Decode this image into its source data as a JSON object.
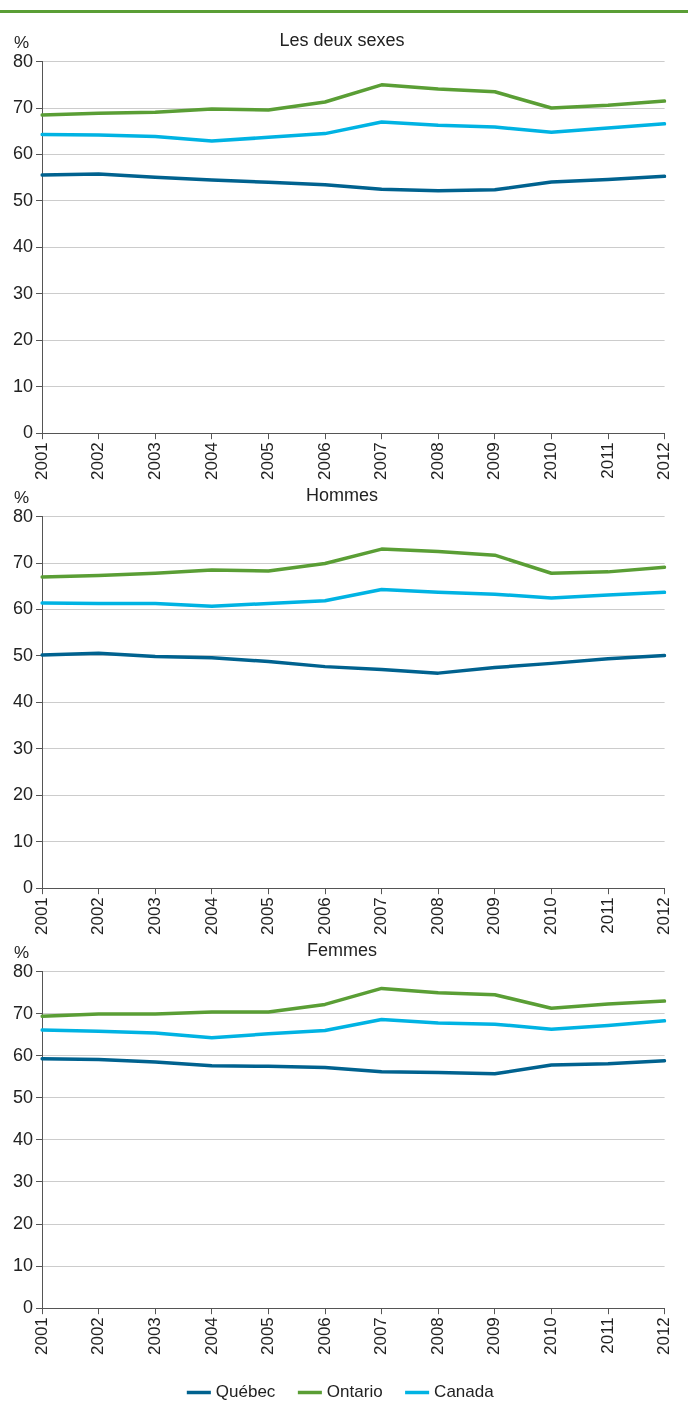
{
  "chart_data": [
    {
      "type": "line",
      "title": "Les deux sexes",
      "ylabel": "%",
      "categories": [
        "2001",
        "2002",
        "2003",
        "2004",
        "2005",
        "2006",
        "2007",
        "2008",
        "2009",
        "2010",
        "2011",
        "2012"
      ],
      "ylim": [
        0,
        80
      ],
      "yticks": [
        0,
        10,
        20,
        30,
        40,
        50,
        60,
        70,
        80
      ],
      "grid": "y",
      "marker": "none",
      "line_style": "solid",
      "series": [
        {
          "color": "#00628f",
          "values": [
            55.6,
            55.8,
            55.1,
            54.5,
            54.0,
            53.5,
            52.5,
            52.2,
            52.4,
            54.1,
            54.6,
            55.3
          ]
        },
        {
          "color": "#5a9e35",
          "values": [
            68.5,
            68.9,
            69.1,
            69.8,
            69.6,
            71.3,
            75.0,
            74.1,
            73.5,
            70.0,
            70.6,
            71.5
          ]
        },
        {
          "color": "#00b3e3",
          "values": [
            64.3,
            64.2,
            63.9,
            62.9,
            63.7,
            64.5,
            67.0,
            66.3,
            65.9,
            64.8,
            65.7,
            66.6
          ]
        }
      ]
    },
    {
      "type": "line",
      "title": "Hommes",
      "ylabel": "%",
      "categories": [
        "2001",
        "2002",
        "2003",
        "2004",
        "2005",
        "2006",
        "2007",
        "2008",
        "2009",
        "2010",
        "2011",
        "2012"
      ],
      "ylim": [
        0,
        80
      ],
      "yticks": [
        0,
        10,
        20,
        30,
        40,
        50,
        60,
        70,
        80
      ],
      "grid": "y",
      "marker": "none",
      "line_style": "solid",
      "series": [
        {
          "color": "#00628f",
          "values": [
            50.2,
            50.6,
            49.9,
            49.6,
            48.8,
            47.7,
            47.1,
            46.3,
            47.5,
            48.4,
            49.4,
            50.1
          ]
        },
        {
          "color": "#5a9e35",
          "values": [
            67.0,
            67.3,
            67.8,
            68.5,
            68.3,
            69.9,
            73.0,
            72.5,
            71.7,
            67.8,
            68.1,
            69.1
          ]
        },
        {
          "color": "#00b3e3",
          "values": [
            61.4,
            61.3,
            61.3,
            60.7,
            61.3,
            61.9,
            64.3,
            63.7,
            63.3,
            62.5,
            63.1,
            63.7
          ]
        }
      ]
    },
    {
      "type": "line",
      "title": "Femmes",
      "ylabel": "%",
      "categories": [
        "2001",
        "2002",
        "2003",
        "2004",
        "2005",
        "2006",
        "2007",
        "2008",
        "2009",
        "2010",
        "2011",
        "2012"
      ],
      "ylim": [
        0,
        80
      ],
      "yticks": [
        0,
        10,
        20,
        30,
        40,
        50,
        60,
        70,
        80
      ],
      "grid": "y",
      "marker": "none",
      "line_style": "solid",
      "legend": "bottom",
      "series": [
        {
          "name": "Québec",
          "color": "#00628f",
          "values": [
            59.3,
            59.1,
            58.5,
            57.6,
            57.5,
            57.2,
            56.2,
            56.0,
            55.7,
            57.8,
            58.1,
            58.8
          ]
        },
        {
          "name": "Ontario",
          "color": "#5a9e35",
          "values": [
            69.4,
            69.9,
            69.9,
            70.4,
            70.4,
            72.2,
            76.0,
            75.0,
            74.5,
            71.3,
            72.3,
            73.0
          ]
        },
        {
          "name": "Canada",
          "color": "#00b3e3",
          "values": [
            66.1,
            65.8,
            65.4,
            64.3,
            65.2,
            66.0,
            68.6,
            67.8,
            67.5,
            66.3,
            67.2,
            68.3
          ]
        }
      ]
    }
  ]
}
